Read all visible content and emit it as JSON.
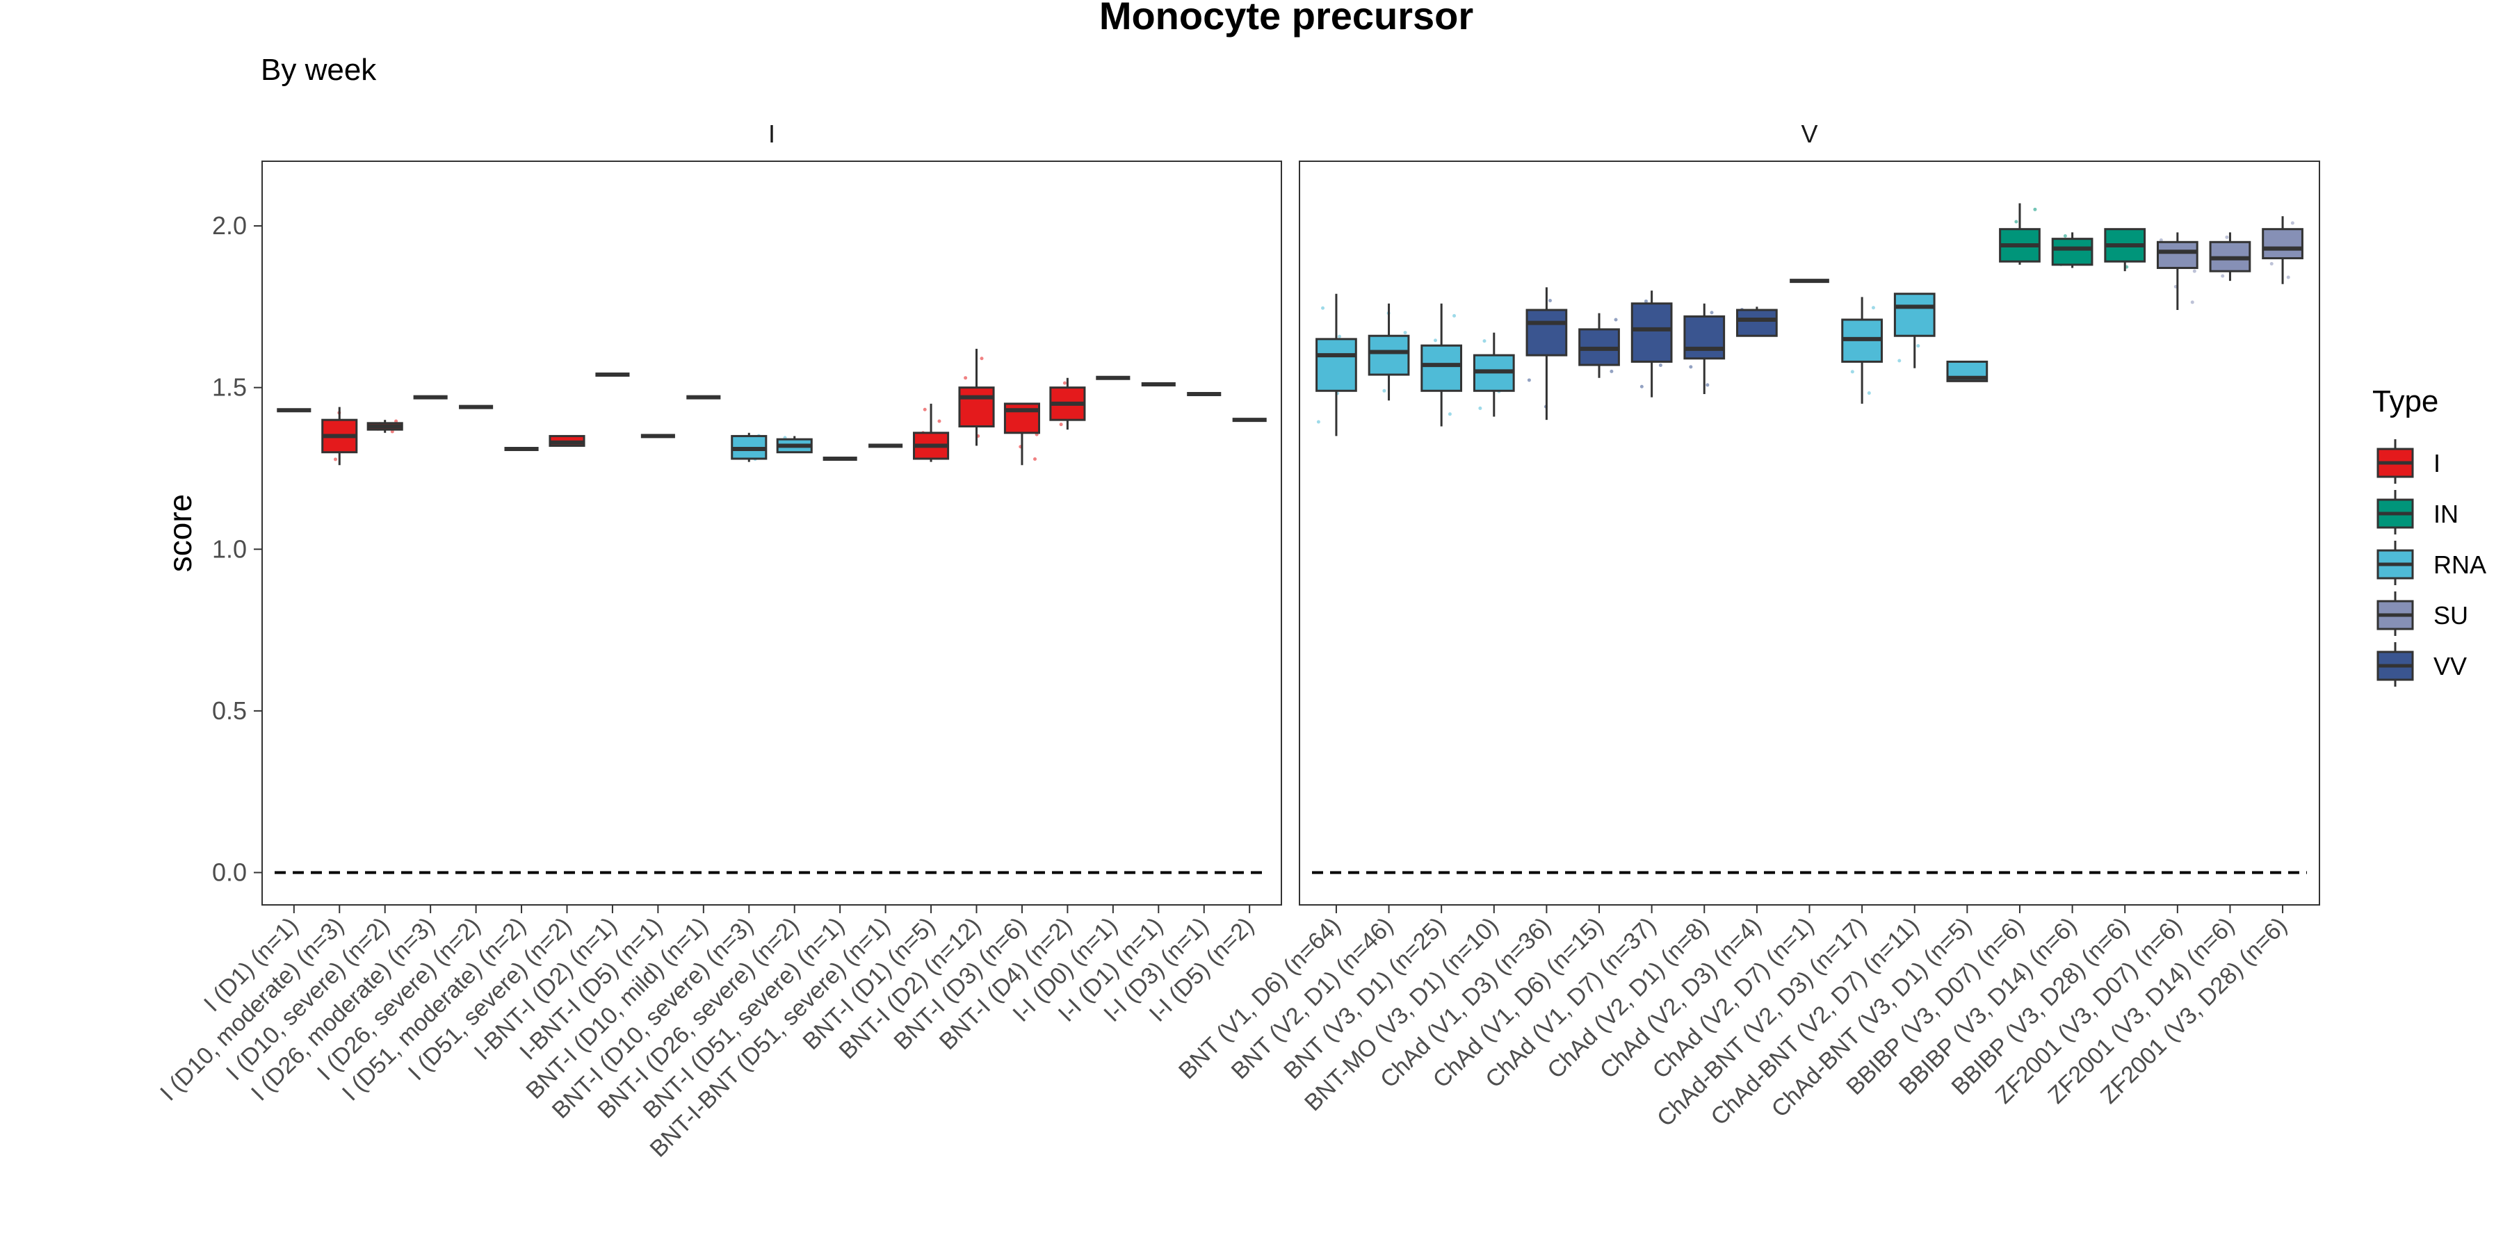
{
  "chart_data": {
    "type": "boxplot",
    "title": "Monocyte precursor",
    "subtitle": "By week",
    "ylabel": "score",
    "ylim": [
      -0.1,
      2.2
    ],
    "yticks": [
      "0.0",
      "0.5",
      "1.0",
      "1.5",
      "2.0"
    ],
    "reference_line": 0,
    "legend": {
      "title": "Type",
      "placement": "right",
      "entries": [
        {
          "label": "I",
          "color": "#E41A1C"
        },
        {
          "label": "IN",
          "color": "#00957A"
        },
        {
          "label": "RNA",
          "color": "#4FBBD7"
        },
        {
          "label": "SU",
          "color": "#8690B6"
        },
        {
          "label": "VV",
          "color": "#3A5590"
        }
      ]
    },
    "facets": [
      {
        "label": "I",
        "categories": [
          {
            "label": "I (D1) (n=1)",
            "type": "I",
            "min": 1.43,
            "q1": 1.43,
            "median": 1.43,
            "q3": 1.43,
            "max": 1.43
          },
          {
            "label": "I (D10, moderate) (n=3)",
            "type": "I",
            "min": 1.26,
            "q1": 1.3,
            "median": 1.35,
            "q3": 1.4,
            "max": 1.44
          },
          {
            "label": "I (D10, severe) (n=2)",
            "type": "I",
            "min": 1.36,
            "q1": 1.37,
            "median": 1.38,
            "q3": 1.39,
            "max": 1.4
          },
          {
            "label": "I (D26, moderate) (n=3)",
            "type": "I",
            "min": 1.47,
            "q1": 1.47,
            "median": 1.47,
            "q3": 1.47,
            "max": 1.47
          },
          {
            "label": "I (D26, severe) (n=2)",
            "type": "I",
            "min": 1.44,
            "q1": 1.44,
            "median": 1.44,
            "q3": 1.44,
            "max": 1.44
          },
          {
            "label": "I (D51, moderate) (n=2)",
            "type": "I",
            "min": 1.31,
            "q1": 1.31,
            "median": 1.31,
            "q3": 1.31,
            "max": 1.31
          },
          {
            "label": "I (D51, severe) (n=2)",
            "type": "I",
            "min": 1.32,
            "q1": 1.32,
            "median": 1.33,
            "q3": 1.35,
            "max": 1.35
          },
          {
            "label": "I-BNT-I (D2) (n=1)",
            "type": "I",
            "min": 1.54,
            "q1": 1.54,
            "median": 1.54,
            "q3": 1.54,
            "max": 1.54
          },
          {
            "label": "I-BNT-I (D5) (n=1)",
            "type": "I",
            "min": 1.35,
            "q1": 1.35,
            "median": 1.35,
            "q3": 1.35,
            "max": 1.35
          },
          {
            "label": "BNT-I (D10, mild) (n=1)",
            "type": "I",
            "min": 1.47,
            "q1": 1.47,
            "median": 1.47,
            "q3": 1.47,
            "max": 1.47
          },
          {
            "label": "BNT-I (D10, severe) (n=3)",
            "type": "RNA",
            "min": 1.27,
            "q1": 1.28,
            "median": 1.31,
            "q3": 1.35,
            "max": 1.36
          },
          {
            "label": "BNT-I (D26, severe) (n=2)",
            "type": "RNA",
            "min": 1.3,
            "q1": 1.3,
            "median": 1.32,
            "q3": 1.34,
            "max": 1.35
          },
          {
            "label": "BNT-I (D51, severe) (n=1)",
            "type": "RNA",
            "min": 1.28,
            "q1": 1.28,
            "median": 1.28,
            "q3": 1.28,
            "max": 1.28
          },
          {
            "label": "BNT-I-BNT (D51, severe) (n=1)",
            "type": "RNA",
            "min": 1.32,
            "q1": 1.32,
            "median": 1.32,
            "q3": 1.32,
            "max": 1.32
          },
          {
            "label": "BNT-I (D1) (n=5)",
            "type": "I",
            "min": 1.27,
            "q1": 1.28,
            "median": 1.32,
            "q3": 1.36,
            "max": 1.45
          },
          {
            "label": "BNT-I (D2) (n=12)",
            "type": "I",
            "min": 1.32,
            "q1": 1.38,
            "median": 1.47,
            "q3": 1.5,
            "max": 1.62
          },
          {
            "label": "BNT-I (D3) (n=6)",
            "type": "I",
            "min": 1.26,
            "q1": 1.36,
            "median": 1.43,
            "q3": 1.45,
            "max": 1.45
          },
          {
            "label": "BNT-I (D4) (n=2)",
            "type": "I",
            "min": 1.37,
            "q1": 1.4,
            "median": 1.45,
            "q3": 1.5,
            "max": 1.53
          },
          {
            "label": "I-I (D0) (n=1)",
            "type": "I",
            "min": 1.53,
            "q1": 1.53,
            "median": 1.53,
            "q3": 1.53,
            "max": 1.53
          },
          {
            "label": "I-I (D1) (n=1)",
            "type": "I",
            "min": 1.51,
            "q1": 1.51,
            "median": 1.51,
            "q3": 1.51,
            "max": 1.51
          },
          {
            "label": "I-I (D3) (n=1)",
            "type": "I",
            "min": 1.48,
            "q1": 1.48,
            "median": 1.48,
            "q3": 1.48,
            "max": 1.48
          },
          {
            "label": "I-I (D5) (n=2)",
            "type": "I",
            "min": 1.4,
            "q1": 1.4,
            "median": 1.4,
            "q3": 1.4,
            "max": 1.4
          }
        ]
      },
      {
        "label": "V",
        "categories": [
          {
            "label": "BNT (V1, D6) (n=64)",
            "type": "RNA",
            "min": 1.35,
            "q1": 1.49,
            "median": 1.6,
            "q3": 1.65,
            "max": 1.79
          },
          {
            "label": "BNT (V2, D1) (n=46)",
            "type": "RNA",
            "min": 1.46,
            "q1": 1.54,
            "median": 1.61,
            "q3": 1.66,
            "max": 1.76
          },
          {
            "label": "BNT (V3, D1) (n=25)",
            "type": "RNA",
            "min": 1.38,
            "q1": 1.49,
            "median": 1.57,
            "q3": 1.63,
            "max": 1.76
          },
          {
            "label": "BNT-MO (V3, D1) (n=10)",
            "type": "RNA",
            "min": 1.41,
            "q1": 1.49,
            "median": 1.55,
            "q3": 1.6,
            "max": 1.67
          },
          {
            "label": "ChAd (V1, D3) (n=36)",
            "type": "VV",
            "min": 1.4,
            "q1": 1.6,
            "median": 1.7,
            "q3": 1.74,
            "max": 1.81
          },
          {
            "label": "ChAd (V1, D6) (n=15)",
            "type": "VV",
            "min": 1.53,
            "q1": 1.57,
            "median": 1.62,
            "q3": 1.68,
            "max": 1.73
          },
          {
            "label": "ChAd (V1, D7) (n=37)",
            "type": "VV",
            "min": 1.47,
            "q1": 1.58,
            "median": 1.68,
            "q3": 1.76,
            "max": 1.8
          },
          {
            "label": "ChAd (V2, D1) (n=8)",
            "type": "VV",
            "min": 1.48,
            "q1": 1.59,
            "median": 1.62,
            "q3": 1.72,
            "max": 1.76
          },
          {
            "label": "ChAd (V2, D3) (n=4)",
            "type": "VV",
            "min": 1.66,
            "q1": 1.66,
            "median": 1.71,
            "q3": 1.74,
            "max": 1.75
          },
          {
            "label": "ChAd (V2, D7) (n=1)",
            "type": "VV",
            "min": 1.83,
            "q1": 1.83,
            "median": 1.83,
            "q3": 1.83,
            "max": 1.83
          },
          {
            "label": "ChAd-BNT (V2, D3) (n=17)",
            "type": "RNA",
            "min": 1.45,
            "q1": 1.58,
            "median": 1.65,
            "q3": 1.71,
            "max": 1.78
          },
          {
            "label": "ChAd-BNT (V2, D7) (n=11)",
            "type": "RNA",
            "min": 1.56,
            "q1": 1.66,
            "median": 1.75,
            "q3": 1.79,
            "max": 1.79
          },
          {
            "label": "ChAd-BNT (V3, D1) (n=5)",
            "type": "RNA",
            "min": 1.52,
            "q1": 1.52,
            "median": 1.53,
            "q3": 1.58,
            "max": 1.58
          },
          {
            "label": "BBIBP (V3, D07) (n=6)",
            "type": "IN",
            "min": 1.88,
            "q1": 1.89,
            "median": 1.94,
            "q3": 1.99,
            "max": 2.07
          },
          {
            "label": "BBIBP (V3, D14) (n=6)",
            "type": "IN",
            "min": 1.87,
            "q1": 1.88,
            "median": 1.93,
            "q3": 1.96,
            "max": 1.98
          },
          {
            "label": "BBIBP (V3, D28) (n=6)",
            "type": "IN",
            "min": 1.86,
            "q1": 1.89,
            "median": 1.94,
            "q3": 1.99,
            "max": 1.99
          },
          {
            "label": "ZF2001 (V3, D07) (n=6)",
            "type": "SU",
            "min": 1.74,
            "q1": 1.87,
            "median": 1.92,
            "q3": 1.95,
            "max": 1.98
          },
          {
            "label": "ZF2001 (V3, D14) (n=6)",
            "type": "SU",
            "min": 1.83,
            "q1": 1.86,
            "median": 1.9,
            "q3": 1.95,
            "max": 1.98
          },
          {
            "label": "ZF2001 (V3, D28) (n=6)",
            "type": "SU",
            "min": 1.82,
            "q1": 1.9,
            "median": 1.93,
            "q3": 1.99,
            "max": 2.03
          }
        ]
      }
    ]
  }
}
